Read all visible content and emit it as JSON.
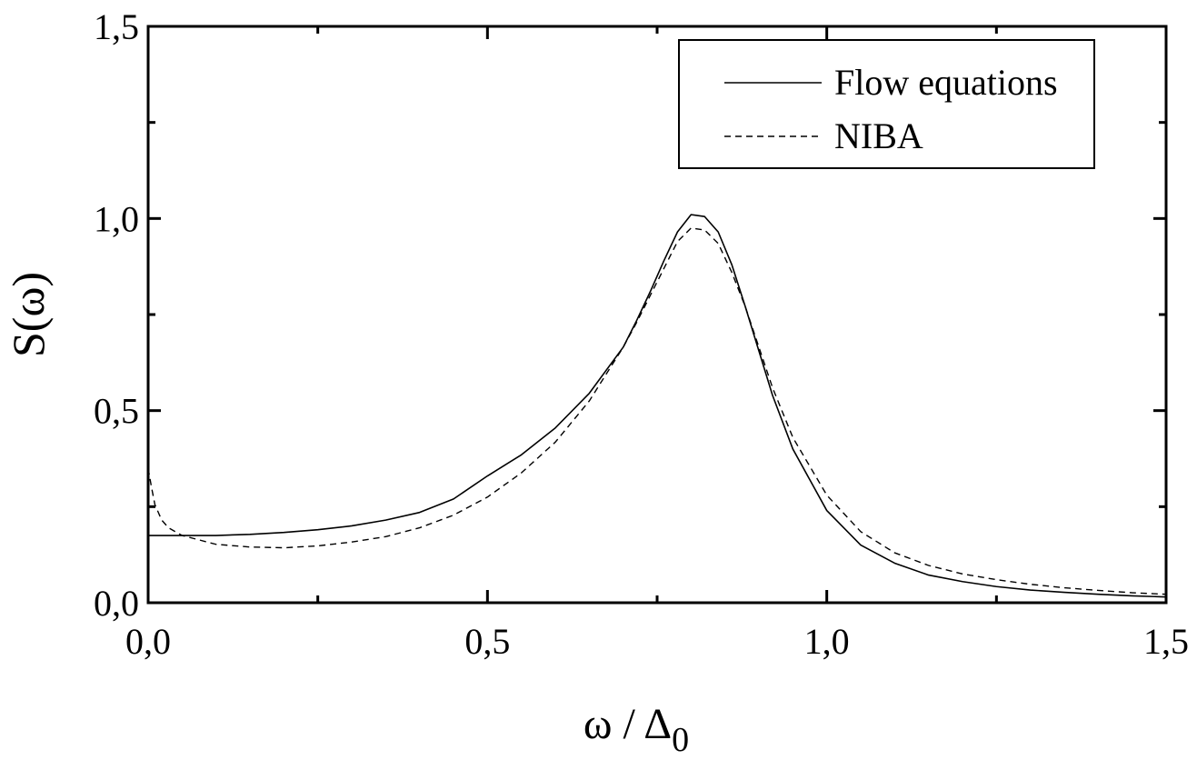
{
  "chart_data": {
    "type": "line",
    "xlabel": {
      "main": "ω / Δ",
      "sub": "0"
    },
    "ylabel": "S(ω)",
    "xlim": [
      0,
      1.5
    ],
    "ylim": [
      0,
      1.5
    ],
    "xticks": [
      {
        "value": 0,
        "label": "0,0"
      },
      {
        "value": 0.5,
        "label": "0,5"
      },
      {
        "value": 1.0,
        "label": "1,0"
      },
      {
        "value": 1.5,
        "label": "1,5"
      }
    ],
    "yticks": [
      {
        "value": 0,
        "label": "0,0"
      },
      {
        "value": 0.5,
        "label": "0,5"
      },
      {
        "value": 1.0,
        "label": "1,0"
      },
      {
        "value": 1.5,
        "label": "1,5"
      }
    ],
    "minor_step": 0.25,
    "grid": false,
    "legend_position": "top-right",
    "series": [
      {
        "name": "Flow equations",
        "style": "solid",
        "color": "#000000",
        "points": [
          [
            0.0,
            0.175
          ],
          [
            0.05,
            0.175
          ],
          [
            0.1,
            0.175
          ],
          [
            0.15,
            0.178
          ],
          [
            0.2,
            0.183
          ],
          [
            0.25,
            0.19
          ],
          [
            0.3,
            0.2
          ],
          [
            0.35,
            0.215
          ],
          [
            0.4,
            0.235
          ],
          [
            0.45,
            0.27
          ],
          [
            0.5,
            0.33
          ],
          [
            0.55,
            0.385
          ],
          [
            0.6,
            0.455
          ],
          [
            0.65,
            0.545
          ],
          [
            0.7,
            0.665
          ],
          [
            0.72,
            0.735
          ],
          [
            0.74,
            0.81
          ],
          [
            0.76,
            0.89
          ],
          [
            0.78,
            0.965
          ],
          [
            0.8,
            1.01
          ],
          [
            0.82,
            1.005
          ],
          [
            0.84,
            0.965
          ],
          [
            0.86,
            0.88
          ],
          [
            0.88,
            0.77
          ],
          [
            0.9,
            0.655
          ],
          [
            0.92,
            0.54
          ],
          [
            0.95,
            0.4
          ],
          [
            1.0,
            0.24
          ],
          [
            1.05,
            0.15
          ],
          [
            1.1,
            0.103
          ],
          [
            1.15,
            0.072
          ],
          [
            1.2,
            0.055
          ],
          [
            1.25,
            0.042
          ],
          [
            1.3,
            0.033
          ],
          [
            1.35,
            0.027
          ],
          [
            1.4,
            0.022
          ],
          [
            1.45,
            0.018
          ],
          [
            1.5,
            0.015
          ]
        ]
      },
      {
        "name": "NIBA",
        "style": "dashed",
        "color": "#000000",
        "points": [
          [
            0.0,
            0.35
          ],
          [
            0.005,
            0.3
          ],
          [
            0.01,
            0.255
          ],
          [
            0.02,
            0.215
          ],
          [
            0.03,
            0.195
          ],
          [
            0.05,
            0.175
          ],
          [
            0.1,
            0.152
          ],
          [
            0.15,
            0.145
          ],
          [
            0.2,
            0.143
          ],
          [
            0.25,
            0.148
          ],
          [
            0.3,
            0.158
          ],
          [
            0.35,
            0.172
          ],
          [
            0.4,
            0.195
          ],
          [
            0.45,
            0.228
          ],
          [
            0.5,
            0.275
          ],
          [
            0.55,
            0.338
          ],
          [
            0.6,
            0.418
          ],
          [
            0.65,
            0.525
          ],
          [
            0.7,
            0.665
          ],
          [
            0.72,
            0.73
          ],
          [
            0.74,
            0.8
          ],
          [
            0.76,
            0.87
          ],
          [
            0.78,
            0.94
          ],
          [
            0.8,
            0.975
          ],
          [
            0.82,
            0.97
          ],
          [
            0.84,
            0.935
          ],
          [
            0.86,
            0.86
          ],
          [
            0.88,
            0.77
          ],
          [
            0.9,
            0.665
          ],
          [
            0.92,
            0.56
          ],
          [
            0.95,
            0.43
          ],
          [
            1.0,
            0.28
          ],
          [
            1.05,
            0.185
          ],
          [
            1.1,
            0.13
          ],
          [
            1.15,
            0.097
          ],
          [
            1.2,
            0.075
          ],
          [
            1.25,
            0.06
          ],
          [
            1.3,
            0.048
          ],
          [
            1.35,
            0.039
          ],
          [
            1.4,
            0.032
          ],
          [
            1.45,
            0.026
          ],
          [
            1.5,
            0.022
          ]
        ]
      }
    ]
  }
}
